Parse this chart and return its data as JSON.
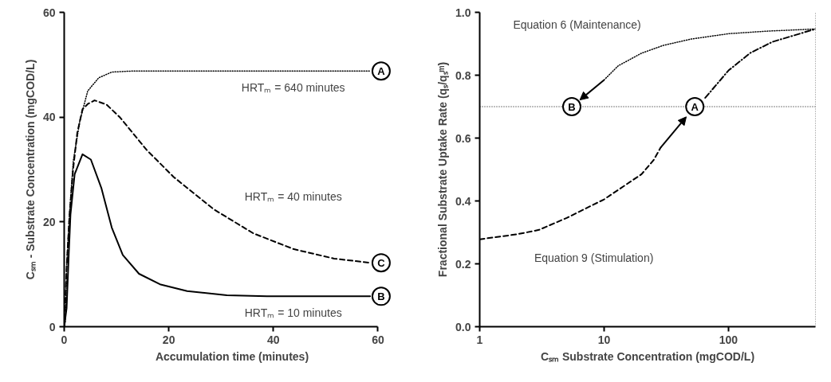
{
  "chart_data": [
    {
      "type": "line",
      "xlabel": "Accumulation time (minutes)",
      "ylabel": "Cₛₘ - Substrate Concentration (mgCOD/L)",
      "xlim": [
        0,
        60
      ],
      "ylim": [
        0,
        60
      ],
      "xticks": [
        0,
        20,
        40,
        60
      ],
      "yticks": [
        0,
        20,
        40,
        60
      ],
      "grid": false,
      "series": [
        {
          "name": "A",
          "color": "#000000",
          "line_style": "dotted",
          "x": [
            0,
            0.2,
            0.46,
            1,
            1.74,
            3,
            4.5,
            6.6,
            9.1,
            13.2,
            58.5
          ],
          "values": [
            0,
            0.9,
            11.2,
            21.4,
            31.7,
            39.3,
            45,
            47.5,
            48.6,
            48.8,
            48.8
          ]
        },
        {
          "name": "C",
          "color": "#000000",
          "line_style": "dashed",
          "x": [
            0,
            0.5,
            1,
            1.7,
            2.5,
            3.5,
            4.5,
            5.8,
            8.1,
            10.7,
            15.8,
            20.9,
            28.6,
            36.2,
            43.9,
            51.6,
            58.5
          ],
          "values": [
            0,
            12,
            21,
            30,
            37,
            41.5,
            42.5,
            43.2,
            42.4,
            39.9,
            33.7,
            28.6,
            22.4,
            17.8,
            14.8,
            13,
            12.2
          ]
        },
        {
          "name": "B",
          "color": "#000000",
          "line_style": "solid",
          "x": [
            0,
            0.46,
            0.87,
            1.2,
            2,
            3.5,
            5.1,
            7.1,
            9.1,
            11.2,
            14.3,
            18.3,
            23.5,
            31.1,
            38.8,
            58.5
          ],
          "values": [
            0,
            3.5,
            13.7,
            21.4,
            29.1,
            32.9,
            31.9,
            26.5,
            18.9,
            13.7,
            10.1,
            8.1,
            6.8,
            6,
            5.8,
            5.8
          ]
        }
      ],
      "annotations": [
        "HRTₘ = 640 minutes",
        "HRTₘ = 40 minutes",
        "HRTₘ = 10 minutes"
      ]
    },
    {
      "type": "line",
      "xlabel": "Cₛₘ Substrate Concentration (mgCOD/L)",
      "ylabel": "Fractional Substrate Uptake Rate (qₛ/qₛᵐ)",
      "log": "x",
      "xlim": [
        1,
        500
      ],
      "ylim": [
        0,
        1
      ],
      "xticks": [
        1,
        10,
        100
      ],
      "yticks": [
        {
          "value": 0,
          "label": "0.0"
        },
        0.2,
        0.4,
        0.6,
        0.8,
        {
          "value": 1,
          "label": "1.0"
        }
      ],
      "grid": false,
      "series": [
        {
          "color": "#000000",
          "line_style": "dotted",
          "x": [
            10,
            13,
            20,
            30,
            50,
            100,
            200,
            500
          ],
          "values": [
            0.785,
            0.83,
            0.87,
            0.895,
            0.915,
            0.932,
            0.94,
            0.947
          ]
        },
        {
          "color": "#000000",
          "line_style": "dashed",
          "x": [
            1,
            2,
            3,
            5,
            10,
            20,
            25,
            28.5
          ],
          "values": [
            0.278,
            0.294,
            0.308,
            0.346,
            0.405,
            0.485,
            0.53,
            0.57
          ]
        },
        {
          "color": "#000000",
          "line_style": "dashdot",
          "x": [
            65,
            100,
            150,
            225,
            500
          ],
          "values": [
            0.728,
            0.815,
            0.871,
            0.906,
            0.947
          ]
        }
      ],
      "ref_lines": [
        {
          "axis": "y",
          "value": 0.7,
          "color": "#000000",
          "line_style": "dotted"
        },
        {
          "axis": "x",
          "value": 500,
          "color": "#000000",
          "line_style": "dotted"
        }
      ],
      "annotations": [
        "Equation 6 (Maintenance)",
        "Equation 9 (Stimulation)",
        {
          "text": "A",
          "x": 53.6,
          "y": 0.7
        },
        {
          "text": "B",
          "x": 5.5,
          "y": 0.7
        }
      ]
    }
  ]
}
